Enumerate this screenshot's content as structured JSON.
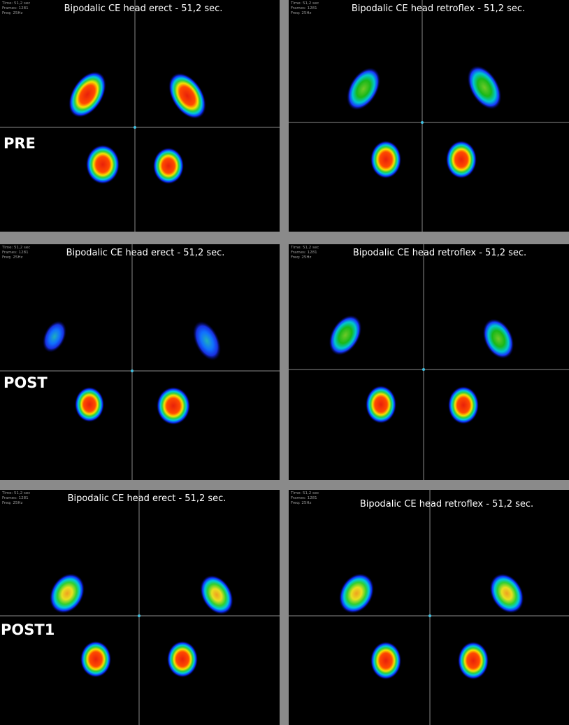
{
  "rows": [
    {
      "label": "PRE",
      "panels": [
        {
          "meta": [
            "Time: 51,2 sec",
            "Frames: 1281",
            "Freq: 25Hz"
          ],
          "title": "Bipodalic CE head erect - 51,2 sec."
        },
        {
          "meta": [
            "Time: 51,2 sec",
            "Frames: 1281",
            "Freq: 25Hz"
          ],
          "title": "Bipodalic CE head retroflex - 51,2 sec."
        }
      ]
    },
    {
      "label": "POST",
      "panels": [
        {
          "meta": [
            "Time: 51,2 sec",
            "Frames: 1281",
            "Freq: 25Hz"
          ],
          "title": "Bipodalic CE head erect - 51,2 sec."
        },
        {
          "meta": [
            "Time: 51,2 sec",
            "Frames: 1281",
            "Freq: 25Hz"
          ],
          "title": "Bipodalic CE head retroflex - 51,2 sec."
        }
      ]
    },
    {
      "label": "POST1",
      "panels": [
        {
          "meta": [
            "Time: 51,2 sec",
            "Frames: 1281",
            "Freq: 25Hz"
          ],
          "title": "Bipodalic CE head erect - 51,2 sec."
        },
        {
          "meta": [
            "Time: 51,2 sec",
            "Frames: 1281",
            "Freq: 25Hz"
          ],
          "title": "Bipodalic CE head retroflex - 51,2 sec."
        }
      ]
    }
  ]
}
